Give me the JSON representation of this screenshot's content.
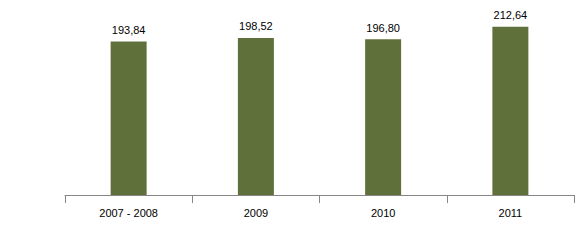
{
  "chart_data": {
    "type": "bar",
    "categories": [
      "2007 - 2008",
      "2009",
      "2010",
      "2011"
    ],
    "values": [
      193.84,
      198.52,
      196.8,
      212.64
    ],
    "value_labels": [
      "193,84",
      "198,52",
      "196,80",
      "212,64"
    ],
    "color": "#60703a",
    "ylim": [
      0,
      230
    ],
    "yticks": [
      0,
      230
    ],
    "grid": false,
    "data_labels": true,
    "tick_labels": "x"
  }
}
